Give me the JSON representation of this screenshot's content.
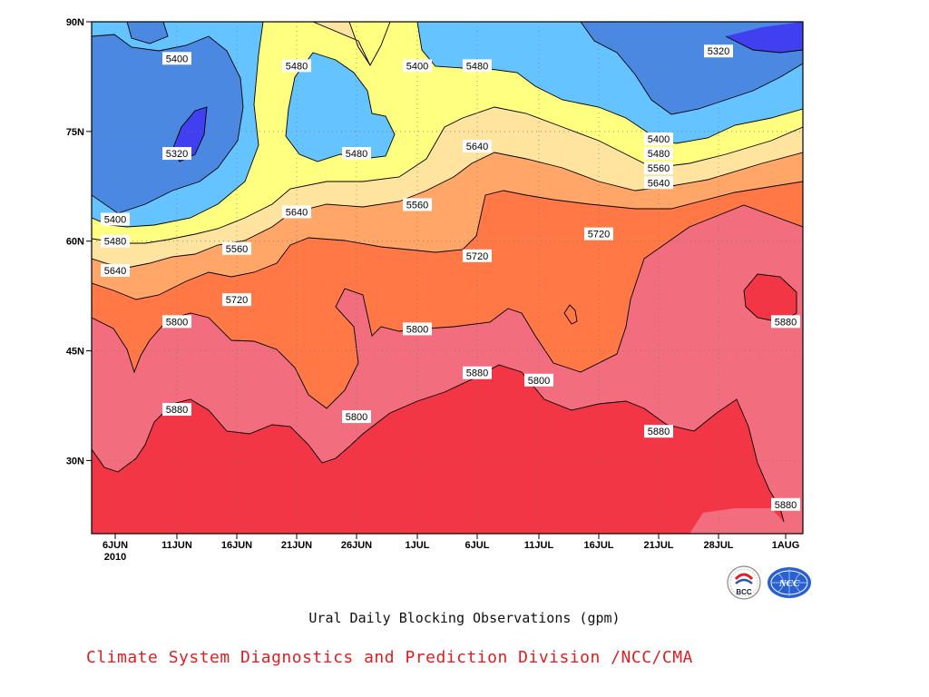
{
  "chart_data": {
    "type": "heatmap",
    "subtype": "filled-contour (time-latitude Hovmöller)",
    "title": "Ural Daily Blocking Observations (gpm)",
    "xlabel": "",
    "ylabel": "",
    "x_ticks": [
      "6JUN\n2010",
      "11JUN",
      "16JUN",
      "21JUN",
      "26JUN",
      "1JUL",
      "6JUL",
      "11JUL",
      "16JUL",
      "21JUL",
      "28JUL",
      "1AUG"
    ],
    "y_ticks": [
      "90N",
      "75N",
      "60N",
      "45N",
      "30N"
    ],
    "ylim": [
      20,
      90
    ],
    "legend": "none",
    "grid": "dotted at ticks",
    "contour_levels": [
      5320,
      5400,
      5480,
      5560,
      5640,
      5720,
      5800,
      5880
    ],
    "band_colors": {
      "below_5320": "#4040f0",
      "5320_5400": "#4a88e2",
      "5400_5480": "#65c4ff",
      "5480_5560": "#ffff80",
      "5560_5640": "#ffe4a0",
      "5640_5720": "#ffa668",
      "5720_5800": "#ff7846",
      "5800_5880": "#f26d7d",
      "above_5880": "#f23646"
    },
    "contour_labels": [
      {
        "value": "5400",
        "date": "11JUN",
        "lat": 85
      },
      {
        "value": "5320",
        "date": "11JUN",
        "lat": 72
      },
      {
        "value": "5400",
        "date": "6JUN",
        "lat": 63
      },
      {
        "value": "5480",
        "date": "6JUN",
        "lat": 60
      },
      {
        "value": "5560",
        "date": "16JUN",
        "lat": 59
      },
      {
        "value": "5640",
        "date": "6JUN",
        "lat": 56
      },
      {
        "value": "5720",
        "date": "16JUN",
        "lat": 52
      },
      {
        "value": "5800",
        "date": "11JUN",
        "lat": 49
      },
      {
        "value": "5880",
        "date": "11JUN",
        "lat": 37
      },
      {
        "value": "5480",
        "date": "21JUN",
        "lat": 84
      },
      {
        "value": "5480",
        "date": "26JUN",
        "lat": 72
      },
      {
        "value": "5640",
        "date": "21JUN",
        "lat": 64
      },
      {
        "value": "5560",
        "date": "1JUL",
        "lat": 65
      },
      {
        "value": "5720",
        "date": "6JUL",
        "lat": 58
      },
      {
        "value": "5800",
        "date": "1JUL",
        "lat": 48
      },
      {
        "value": "5800",
        "date": "26JUN",
        "lat": 36
      },
      {
        "value": "5400",
        "date": "1JUL",
        "lat": 84
      },
      {
        "value": "5480",
        "date": "6JUL",
        "lat": 84
      },
      {
        "value": "5640",
        "date": "6JUL",
        "lat": 73
      },
      {
        "value": "5880",
        "date": "6JUL",
        "lat": 42
      },
      {
        "value": "5800",
        "date": "11JUL",
        "lat": 41
      },
      {
        "value": "5320",
        "date": "28JUL",
        "lat": 86
      },
      {
        "value": "5400",
        "date": "21JUL",
        "lat": 74
      },
      {
        "value": "5480",
        "date": "21JUL",
        "lat": 72
      },
      {
        "value": "5560",
        "date": "21JUL",
        "lat": 70
      },
      {
        "value": "5640",
        "date": "21JUL",
        "lat": 68
      },
      {
        "value": "5720",
        "date": "16JUL",
        "lat": 61
      },
      {
        "value": "5880",
        "date": "21JUL",
        "lat": 34
      },
      {
        "value": "5880",
        "date": "1AUG",
        "lat": 49
      },
      {
        "value": "5880",
        "date": "1AUG",
        "lat": 24
      }
    ]
  },
  "caption": {
    "title": "Ural Daily Blocking Observations (gpm)",
    "credit": "Climate System Diagnostics and Prediction Division /NCC/CMA"
  },
  "logos": {
    "left": "BCC",
    "right": "NCC"
  }
}
